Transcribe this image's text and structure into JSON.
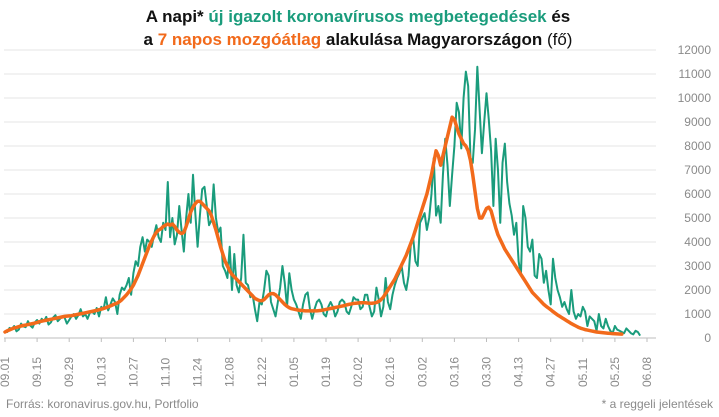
{
  "title": {
    "line1": [
      {
        "text": "A napi* ",
        "color": "#111111"
      },
      {
        "text": "új igazolt koronavírusos megbetegedések",
        "color": "#1a9c7c"
      },
      {
        "text": " és",
        "color": "#111111"
      }
    ],
    "line2": [
      {
        "text": "a ",
        "color": "#111111"
      },
      {
        "text": "7 napos mozgóátlag",
        "color": "#f26a1b"
      },
      {
        "text": " alakulása Magyarországon ",
        "color": "#111111"
      },
      {
        "text": "(fő)",
        "color": "#111111",
        "normal": true
      }
    ]
  },
  "footer": {
    "source": "Forrás: koronavirus.gov.hu, Portfolio",
    "note": "* a reggeli jelentések"
  },
  "colors": {
    "daily": "#1a9c7c",
    "average": "#f26a1b",
    "grid": "#e6e6e6",
    "axis": "#bdbdbd",
    "tick_text": "#8a8a8a"
  },
  "chart_data": {
    "type": "line",
    "y_axis_position": "right",
    "ylim": [
      0,
      12000
    ],
    "yticks": [
      0,
      1000,
      2000,
      3000,
      4000,
      5000,
      6000,
      7000,
      8000,
      9000,
      10000,
      11000,
      12000
    ],
    "xticks": [
      "09.01",
      "09.15",
      "09.29",
      "10.13",
      "10.27",
      "11.10",
      "11.24",
      "12.08",
      "12.22",
      "01.05",
      "01.19",
      "02.02",
      "02.16",
      "03.02",
      "03.16",
      "03.30",
      "04.13",
      "04.27",
      "05.11",
      "05.25",
      "06.08"
    ],
    "grid": true,
    "start_date": "09.01",
    "series": [
      {
        "name": "új igazolt koronavírusos megbetegedések",
        "values": [
          300,
          250,
          420,
          380,
          500,
          280,
          350,
          600,
          480,
          450,
          700,
          520,
          430,
          650,
          750,
          600,
          800,
          700,
          880,
          560,
          650,
          850,
          950,
          700,
          800,
          900,
          850,
          600,
          750,
          900,
          1000,
          800,
          950,
          1200,
          900,
          1000,
          800,
          1050,
          1100,
          1000,
          1250,
          900,
          1300,
          1200,
          1700,
          1150,
          1400,
          1650,
          1500,
          1000,
          1800,
          2100,
          2000,
          2200,
          2500,
          1800,
          2700,
          3200,
          3000,
          3800,
          4200,
          3600,
          4100,
          4000,
          3800,
          4300,
          4700,
          4200,
          4000,
          4800,
          4500,
          6500,
          4200,
          5000,
          3900,
          4300,
          5500,
          4500,
          3600,
          5000,
          6000,
          4800,
          6800,
          5200,
          3800,
          5100,
          6200,
          6300,
          5500,
          4700,
          4900,
          6400,
          5000,
          4400,
          4600,
          3000,
          2800,
          2500,
          3800,
          2000,
          3500,
          2200,
          1900,
          2500,
          4300,
          2300,
          2200,
          1700,
          1800,
          1200,
          700,
          1500,
          1400,
          2000,
          2800,
          2600,
          1500,
          1200,
          900,
          1500,
          2100,
          3000,
          2300,
          1300,
          2700,
          2000,
          1600,
          1400,
          1100,
          800,
          1400,
          1800,
          1900,
          1200,
          800,
          1200,
          1500,
          1600,
          1400,
          1000,
          900,
          1300,
          1500,
          1300,
          900,
          1100,
          1500,
          1600,
          1500,
          1100,
          1000,
          1300,
          1700,
          1600,
          1600,
          1200,
          1300,
          1800,
          1800,
          1300,
          900,
          1100,
          2100,
          1600,
          900,
          1300,
          2500,
          1500,
          1200,
          1800,
          2200,
          2500,
          2700,
          3000,
          2300,
          2000,
          2600,
          3900,
          4200,
          3200,
          3000,
          4800,
          5000,
          5200,
          4500,
          5000,
          6000,
          7500,
          5100,
          5500,
          4800,
          6800,
          8300,
          7200,
          5500,
          6800,
          8000,
          9800,
          9400,
          7900,
          10000,
          11100,
          10500,
          7500,
          7300,
          8700,
          11300,
          9500,
          7700,
          9000,
          10200,
          9100,
          7800,
          5500,
          8300,
          7000,
          4800,
          7300,
          8100,
          6500,
          5600,
          5100,
          4300,
          4800,
          3200,
          2600,
          5500,
          5000,
          3800,
          3600,
          4100,
          2600,
          2500,
          3500,
          3300,
          2300,
          2800,
          2000,
          1400,
          3300,
          2500,
          2000,
          1700,
          1300,
          1500,
          1200,
          1000,
          2000,
          1100,
          800,
          1000,
          900,
          1300,
          1100,
          500,
          900,
          800,
          700,
          300,
          1000,
          500,
          400,
          800,
          500,
          300,
          200,
          500,
          350,
          300,
          250,
          200,
          400,
          300,
          200,
          150,
          300,
          250,
          100
        ]
      },
      {
        "name": "7 napos mozgóátlag",
        "values": [
          250,
          300,
          340,
          380,
          420,
          440,
          470,
          500,
          520,
          540,
          560,
          580,
          600,
          620,
          650,
          680,
          700,
          720,
          740,
          760,
          780,
          800,
          820,
          840,
          860,
          880,
          900,
          910,
          920,
          930,
          950,
          970,
          990,
          1010,
          1030,
          1050,
          1070,
          1090,
          1110,
          1130,
          1150,
          1180,
          1200,
          1230,
          1260,
          1300,
          1340,
          1380,
          1420,
          1460,
          1520,
          1600,
          1700,
          1800,
          1920,
          2050,
          2200,
          2400,
          2600,
          2850,
          3100,
          3350,
          3600,
          3850,
          4050,
          4250,
          4400,
          4500,
          4550,
          4650,
          4700,
          4750,
          4700,
          4750,
          4650,
          4500,
          4400,
          4350,
          4400,
          4650,
          4950,
          5250,
          5450,
          5600,
          5700,
          5700,
          5600,
          5500,
          5400,
          5300,
          5100,
          4800,
          4500,
          4150,
          3800,
          3500,
          3200,
          3000,
          2800,
          2650,
          2550,
          2450,
          2350,
          2250,
          2150,
          2050,
          1950,
          1850,
          1750,
          1650,
          1600,
          1560,
          1550,
          1600,
          1700,
          1800,
          1850,
          1850,
          1800,
          1700,
          1600,
          1500,
          1400,
          1320,
          1260,
          1220,
          1200,
          1180,
          1160,
          1150,
          1140,
          1130,
          1130,
          1130,
          1130,
          1130,
          1130,
          1140,
          1150,
          1170,
          1190,
          1210,
          1230,
          1250,
          1270,
          1290,
          1310,
          1330,
          1350,
          1380,
          1400,
          1420,
          1440,
          1450,
          1460,
          1470,
          1470,
          1470,
          1460,
          1450,
          1450,
          1460,
          1480,
          1520,
          1600,
          1700,
          1850,
          2000,
          2150,
          2300,
          2450,
          2650,
          2850,
          3050,
          3250,
          3450,
          3700,
          3950,
          4200,
          4500,
          4800,
          5100,
          5400,
          5700,
          6000,
          6400,
          6800,
          7300,
          7800,
          7600,
          7200,
          7600,
          8000,
          8400,
          8800,
          9200,
          9100,
          8800,
          8500,
          8300,
          8100,
          8000,
          7800,
          7400,
          6800,
          6100,
          5400,
          5000,
          5000,
          5200,
          5400,
          5450,
          5300,
          4950,
          4600,
          4300,
          4100,
          3900,
          3700,
          3550,
          3400,
          3250,
          3100,
          2950,
          2800,
          2650,
          2500,
          2350,
          2200,
          2050,
          1900,
          1800,
          1700,
          1600,
          1500,
          1400,
          1320,
          1250,
          1180,
          1100,
          1030,
          960,
          900,
          840,
          780,
          720,
          660,
          600,
          550,
          500,
          450,
          410,
          380,
          350,
          330,
          310,
          290,
          270,
          250,
          240,
          230,
          220,
          210,
          200,
          190,
          180,
          175,
          170,
          165,
          160
        ]
      }
    ]
  }
}
